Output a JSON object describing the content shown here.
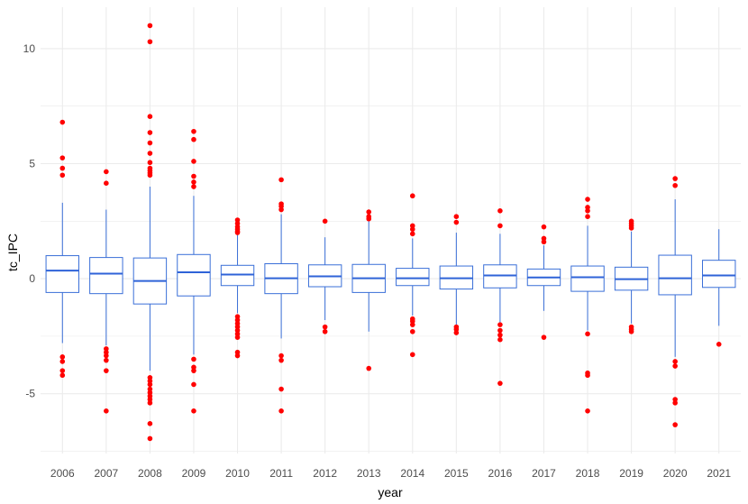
{
  "chart_data": {
    "type": "box",
    "title": "",
    "xlabel": "year",
    "ylabel": "tc_IPC",
    "ylim": [
      -7.6,
      11.8
    ],
    "yticks": [
      -5,
      0,
      5,
      10
    ],
    "ytick_labels": [
      "-5",
      "0",
      "5",
      "10"
    ],
    "grid": true,
    "legend": "none",
    "colors": {
      "box": "#3a6fd8",
      "median": "#2f63d8",
      "outlier": "#ff0000",
      "grid": "#ebebeb"
    },
    "categories": [
      "2006",
      "2007",
      "2008",
      "2009",
      "2010",
      "2011",
      "2012",
      "2013",
      "2014",
      "2015",
      "2016",
      "2017",
      "2018",
      "2019",
      "2020",
      "2021"
    ],
    "boxes": [
      {
        "x": "2006",
        "q1": -0.6,
        "median": 0.35,
        "q3": 1.0,
        "whisker_low": -2.8,
        "whisker_high": 3.3,
        "outliers": [
          6.8,
          5.25,
          4.8,
          4.5,
          -3.4,
          -3.6,
          -4.0,
          -4.2
        ]
      },
      {
        "x": "2007",
        "q1": -0.65,
        "median": 0.22,
        "q3": 0.92,
        "whisker_low": -2.9,
        "whisker_high": 3.0,
        "outliers": [
          4.65,
          4.15,
          -3.05,
          -3.2,
          -3.35,
          -3.55,
          -4.0,
          -5.75
        ]
      },
      {
        "x": "2008",
        "q1": -1.1,
        "median": -0.1,
        "q3": 0.9,
        "whisker_low": -4.0,
        "whisker_high": 4.0,
        "outliers": [
          11.0,
          10.3,
          7.05,
          6.35,
          5.9,
          5.45,
          5.05,
          4.8,
          4.7,
          4.6,
          4.5,
          -4.3,
          -4.45,
          -4.6,
          -4.8,
          -4.95,
          -5.1,
          -5.25,
          -5.4,
          -6.3,
          -6.95
        ]
      },
      {
        "x": "2009",
        "q1": -0.75,
        "median": 0.28,
        "q3": 1.05,
        "whisker_low": -3.3,
        "whisker_high": 3.6,
        "outliers": [
          6.4,
          6.05,
          5.1,
          4.45,
          4.2,
          4.0,
          -3.5,
          -3.85,
          -4.0,
          -4.6,
          -5.75
        ]
      },
      {
        "x": "2010",
        "q1": -0.3,
        "median": 0.18,
        "q3": 0.58,
        "whisker_low": -1.5,
        "whisker_high": 1.9,
        "outliers": [
          2.55,
          2.4,
          2.25,
          2.15,
          2.05,
          2.0,
          -1.65,
          -1.8,
          -1.95,
          -2.1,
          -2.25,
          -2.4,
          -2.55,
          -3.2,
          -3.35
        ]
      },
      {
        "x": "2011",
        "q1": -0.65,
        "median": 0.02,
        "q3": 0.65,
        "whisker_low": -2.6,
        "whisker_high": 2.8,
        "outliers": [
          4.3,
          3.25,
          3.15,
          3.0,
          -3.35,
          -3.55,
          -4.8,
          -5.75
        ]
      },
      {
        "x": "2012",
        "q1": -0.35,
        "median": 0.1,
        "q3": 0.6,
        "whisker_low": -1.8,
        "whisker_high": 1.8,
        "outliers": [
          2.5,
          -2.1,
          -2.3
        ]
      },
      {
        "x": "2013",
        "q1": -0.6,
        "median": 0.02,
        "q3": 0.62,
        "whisker_low": -2.3,
        "whisker_high": 2.5,
        "outliers": [
          2.9,
          2.7,
          2.6,
          -3.9
        ]
      },
      {
        "x": "2014",
        "q1": -0.3,
        "median": 0.02,
        "q3": 0.45,
        "whisker_low": -1.6,
        "whisker_high": 1.75,
        "outliers": [
          3.6,
          2.3,
          2.15,
          1.95,
          -1.75,
          -1.85,
          -2.0,
          -2.3,
          -3.3
        ]
      },
      {
        "x": "2015",
        "q1": -0.45,
        "median": 0.02,
        "q3": 0.55,
        "whisker_low": -2.0,
        "whisker_high": 2.0,
        "outliers": [
          2.7,
          2.45,
          -2.1,
          -2.2,
          -2.35
        ]
      },
      {
        "x": "2016",
        "q1": -0.4,
        "median": 0.14,
        "q3": 0.6,
        "whisker_low": -1.9,
        "whisker_high": 1.95,
        "outliers": [
          2.95,
          2.3,
          -2.0,
          -2.25,
          -2.45,
          -2.65,
          -4.55
        ]
      },
      {
        "x": "2017",
        "q1": -0.3,
        "median": 0.05,
        "q3": 0.42,
        "whisker_low": -1.4,
        "whisker_high": 1.45,
        "outliers": [
          2.25,
          1.75,
          1.6,
          -2.55
        ]
      },
      {
        "x": "2018",
        "q1": -0.55,
        "median": 0.06,
        "q3": 0.55,
        "whisker_low": -2.25,
        "whisker_high": 2.3,
        "outliers": [
          3.45,
          3.1,
          2.95,
          2.7,
          -2.4,
          -4.1,
          -4.2,
          -5.75
        ]
      },
      {
        "x": "2019",
        "q1": -0.5,
        "median": -0.02,
        "q3": 0.5,
        "whisker_low": -1.95,
        "whisker_high": 2.05,
        "outliers": [
          2.5,
          2.4,
          2.3,
          2.2,
          -2.1,
          -2.2,
          -2.3
        ]
      },
      {
        "x": "2020",
        "q1": -0.7,
        "median": 0.02,
        "q3": 1.02,
        "whisker_low": -3.4,
        "whisker_high": 3.45,
        "outliers": [
          4.35,
          4.05,
          -3.6,
          -3.8,
          -5.25,
          -5.4,
          -6.35
        ]
      },
      {
        "x": "2021",
        "q1": -0.38,
        "median": 0.14,
        "q3": 0.8,
        "whisker_low": -2.05,
        "whisker_high": 2.15,
        "outliers": [
          -2.85
        ]
      }
    ]
  }
}
